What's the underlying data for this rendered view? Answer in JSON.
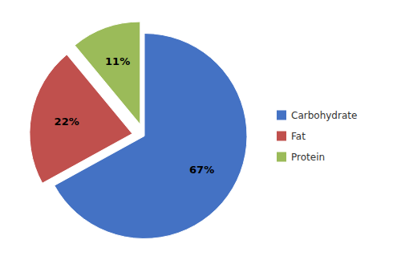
{
  "chart_data": {
    "type": "pie",
    "categories": [
      "Carbohydrate",
      "Fat",
      "Protein"
    ],
    "values": [
      67,
      22,
      11
    ],
    "value_labels": [
      "67%",
      "22%",
      "11%"
    ],
    "colors": [
      "#4472C4",
      "#C0504D",
      "#9BBB59"
    ],
    "data_labels": true,
    "legend": "right"
  }
}
